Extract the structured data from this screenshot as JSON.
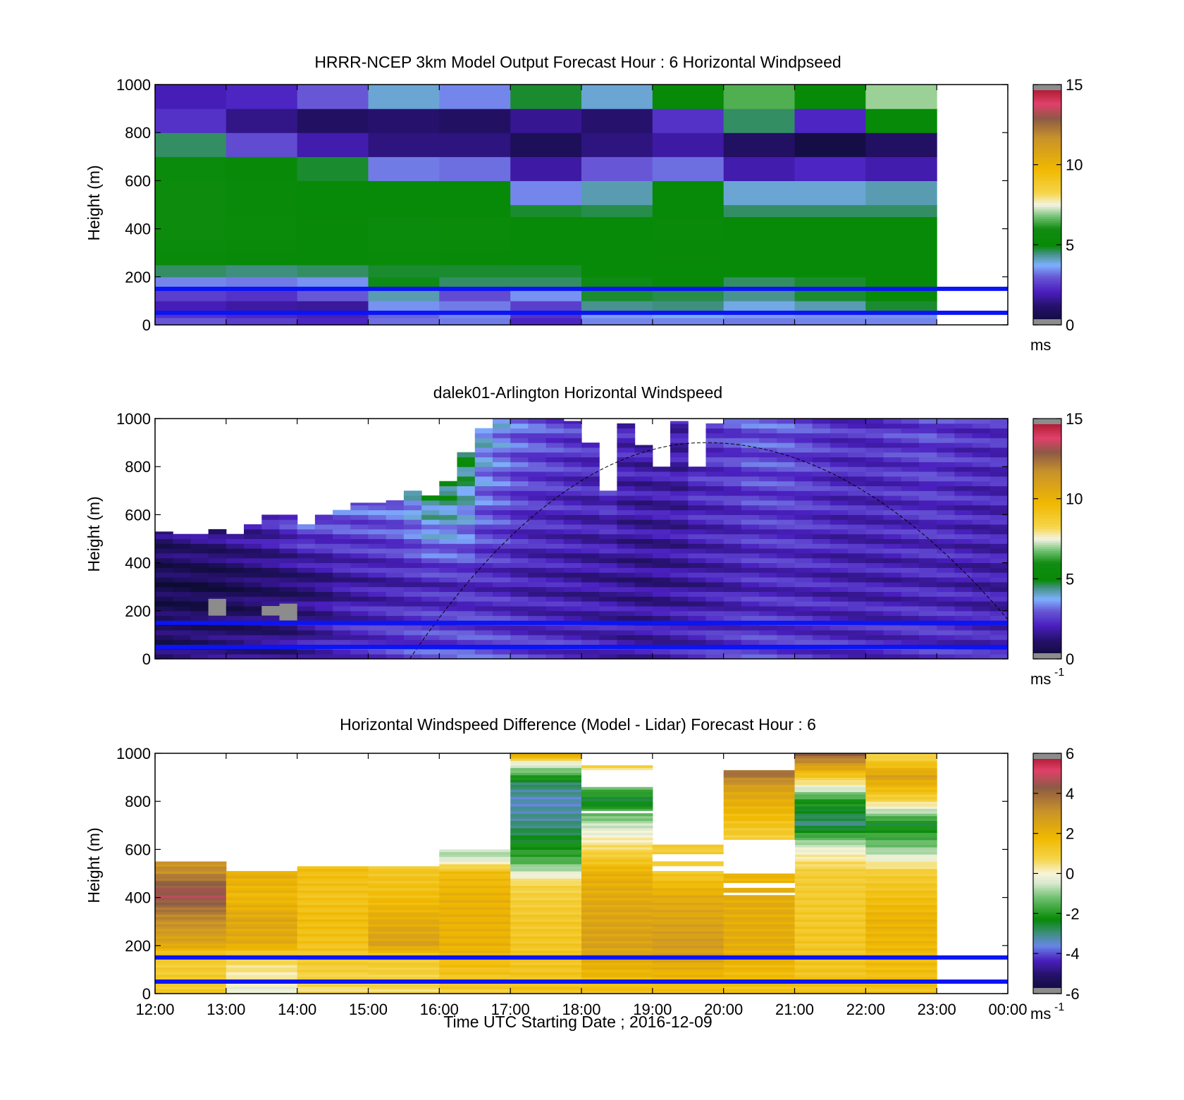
{
  "figure": {
    "xlabel": "Time UTC  Starting Date ; 2016-12-09",
    "x_ticks": [
      "12:00",
      "13:00",
      "14:00",
      "15:00",
      "16:00",
      "17:00",
      "18:00",
      "19:00",
      "20:00",
      "21:00",
      "22:00",
      "23:00",
      "00:00"
    ]
  },
  "chart_data": [
    {
      "type": "heatmap",
      "title": "HRRR-NCEP 3km Model Output   Forecast Hour : 6 Horizontal Windpseed",
      "ylabel": "Height (m)",
      "ylim": [
        0,
        1000
      ],
      "y_ticks": [
        "0",
        "200",
        "400",
        "600",
        "800",
        "1000"
      ],
      "colorbar": {
        "range": [
          0,
          15
        ],
        "ticks": [
          "0",
          "5",
          "10",
          "15"
        ],
        "unit": "ms"
      },
      "x": [
        "12:00",
        "13:00",
        "14:00",
        "15:00",
        "16:00",
        "17:00",
        "18:00",
        "19:00",
        "20:00",
        "21:00",
        "22:00"
      ],
      "y_edges": [
        0,
        30,
        50,
        100,
        150,
        200,
        250,
        300,
        350,
        400,
        450,
        500,
        600,
        700,
        800,
        900,
        1000
      ],
      "values": [
        [
          3.0,
          2.6,
          2.2,
          3.2,
          3.3,
          2.2,
          3.4,
          3.4,
          3.3,
          3.4,
          3.4
        ],
        [
          2.4,
          2.2,
          2.0,
          3.1,
          3.4,
          2.4,
          3.6,
          3.8,
          3.6,
          3.5,
          3.5
        ],
        [
          2.0,
          1.8,
          1.7,
          3.5,
          3.3,
          2.6,
          4.4,
          4.5,
          3.9,
          4.2,
          4.8
        ],
        [
          2.6,
          2.4,
          3.0,
          4.2,
          2.8,
          3.5,
          4.8,
          4.7,
          4.4,
          4.8,
          5.0
        ],
        [
          3.4,
          3.3,
          3.5,
          4.9,
          4.6,
          4.6,
          4.9,
          5.0,
          4.6,
          4.8,
          5.0
        ],
        [
          4.6,
          4.5,
          4.6,
          4.8,
          4.8,
          4.8,
          5.0,
          5.0,
          5.0,
          5.0,
          5.0
        ],
        [
          5.2,
          5.0,
          5.0,
          5.2,
          5.1,
          5.0,
          5.0,
          5.1,
          5.0,
          5.0,
          5.0
        ],
        [
          5.4,
          5.2,
          5.0,
          5.3,
          5.2,
          5.0,
          5.0,
          5.1,
          5.0,
          5.0,
          5.0
        ],
        [
          5.5,
          5.3,
          5.1,
          5.4,
          5.3,
          5.0,
          5.0,
          5.2,
          5.0,
          5.0,
          5.0
        ],
        [
          5.6,
          5.3,
          5.1,
          5.4,
          5.3,
          5.0,
          5.0,
          5.2,
          5.0,
          5.0,
          5.0
        ],
        [
          5.6,
          5.2,
          5.0,
          5.0,
          5.0,
          4.8,
          4.7,
          5.0,
          4.6,
          4.6,
          4.6
        ],
        [
          5.6,
          5.2,
          5.0,
          5.0,
          5.0,
          3.4,
          4.2,
          5.0,
          4.0,
          4.0,
          4.2
        ],
        [
          5.4,
          5.1,
          4.8,
          3.3,
          3.2,
          1.8,
          3.0,
          3.2,
          1.9,
          2.2,
          1.9
        ],
        [
          4.6,
          2.8,
          1.9,
          1.4,
          1.4,
          0.8,
          1.4,
          1.8,
          1.0,
          0.4,
          1.0
        ],
        [
          2.4,
          1.5,
          1.0,
          1.2,
          1.0,
          1.6,
          1.2,
          2.4,
          4.6,
          2.2,
          5.0
        ],
        [
          2.0,
          2.2,
          3.0,
          4.0,
          3.4,
          4.8,
          4.0,
          5.0,
          6.5,
          5.0,
          7.0
        ]
      ],
      "reference_heights": [
        50,
        150
      ]
    },
    {
      "type": "heatmap",
      "title": "dalek01-Arlington  Horizontal Windspeed",
      "ylabel": "Height (m)",
      "ylim": [
        0,
        1000
      ],
      "y_ticks": [
        "0",
        "200",
        "400",
        "600",
        "800",
        "1000"
      ],
      "colorbar": {
        "range": [
          0,
          15
        ],
        "ticks": [
          "0",
          "5",
          "10",
          "15"
        ],
        "unit": "ms",
        "unit_exp": "-1"
      },
      "columns_per_hour": 4,
      "top_height_per_column": [
        530,
        520,
        520,
        540,
        520,
        560,
        600,
        600,
        560,
        600,
        620,
        650,
        650,
        660,
        700,
        680,
        740,
        860,
        960,
        1000,
        1000,
        1000,
        1000,
        990,
        900,
        700,
        980,
        890,
        800,
        990,
        800,
        980,
        1000,
        1000,
        1000,
        1000,
        1000,
        1000,
        1000,
        1000,
        1000,
        1000,
        1000,
        1000,
        1000,
        1000,
        1000,
        1000
      ],
      "speed_profile_per_column": [
        [
          1.0,
          0.6,
          1.2
        ],
        [
          1.1,
          0.6,
          1.4
        ],
        [
          1.2,
          0.5,
          1.6
        ],
        [
          1.3,
          0.6,
          1.6
        ],
        [
          1.3,
          0.7,
          1.8
        ],
        [
          1.4,
          0.9,
          2.0
        ],
        [
          1.5,
          1.0,
          2.4
        ],
        [
          1.6,
          1.1,
          2.8
        ],
        [
          2.0,
          1.2,
          3.0
        ],
        [
          2.2,
          1.4,
          3.0
        ],
        [
          2.4,
          1.7,
          3.2
        ],
        [
          2.5,
          1.8,
          3.2
        ],
        [
          2.6,
          1.9,
          3.3
        ],
        [
          2.7,
          2.0,
          3.4
        ],
        [
          2.8,
          2.1,
          4.0
        ],
        [
          2.8,
          2.2,
          4.6
        ],
        [
          2.8,
          2.2,
          5.0
        ],
        [
          2.9,
          2.3,
          5.0
        ],
        [
          2.8,
          2.2,
          4.0
        ],
        [
          2.7,
          2.2,
          3.6
        ],
        [
          2.6,
          2.0,
          3.2
        ],
        [
          2.5,
          1.9,
          3.0
        ],
        [
          2.5,
          1.9,
          2.8
        ],
        [
          2.4,
          1.8,
          2.6
        ],
        [
          2.3,
          1.7,
          2.4
        ],
        [
          2.2,
          1.7,
          2.4
        ],
        [
          2.0,
          1.6,
          2.2
        ],
        [
          2.0,
          1.5,
          2.0
        ],
        [
          2.0,
          1.6,
          2.0
        ],
        [
          2.1,
          1.7,
          2.0
        ],
        [
          2.2,
          1.8,
          2.4
        ],
        [
          2.4,
          1.9,
          2.6
        ],
        [
          2.5,
          2.0,
          2.8
        ],
        [
          2.6,
          2.2,
          3.0
        ],
        [
          2.6,
          2.2,
          3.0
        ],
        [
          2.5,
          2.2,
          3.0
        ],
        [
          2.5,
          2.2,
          2.8
        ],
        [
          2.4,
          2.1,
          2.6
        ],
        [
          2.4,
          2.0,
          2.4
        ],
        [
          2.3,
          2.0,
          2.4
        ],
        [
          2.3,
          2.0,
          2.4
        ],
        [
          2.4,
          2.0,
          2.6
        ],
        [
          2.4,
          2.1,
          2.6
        ],
        [
          2.5,
          2.1,
          2.8
        ],
        [
          2.4,
          2.1,
          2.6
        ],
        [
          2.3,
          2.0,
          2.4
        ],
        [
          2.2,
          1.9,
          2.4
        ],
        [
          2.2,
          1.9,
          2.4
        ]
      ],
      "missing_cells": [
        {
          "x": "12:45",
          "y_range": [
            180,
            250
          ]
        },
        {
          "x": "13:30",
          "y_range": [
            180,
            220
          ]
        },
        {
          "x": "13:45",
          "y_range": [
            160,
            230
          ]
        }
      ],
      "reference_heights": [
        50,
        150
      ],
      "overlay_curve": {
        "style": "dashed",
        "x_range": [
          "15:35",
          "00:00"
        ],
        "peak_height": 900,
        "peak_x": "19:45"
      }
    },
    {
      "type": "heatmap",
      "title": "Horizontal Windspeed Difference (Model - Lidar) Forecast Hour : 6",
      "ylabel": "Height (m)",
      "ylim": [
        0,
        1000
      ],
      "y_ticks": [
        "0",
        "200",
        "400",
        "600",
        "800",
        "1000"
      ],
      "colorbar": {
        "range": [
          -6,
          6
        ],
        "ticks": [
          "-6",
          "-4",
          "-2",
          "0",
          "2",
          "4",
          "6"
        ],
        "unit": "ms",
        "unit_exp": "-1"
      },
      "x": [
        "12:00",
        "13:00",
        "14:00",
        "15:00",
        "16:00",
        "17:00",
        "18:00",
        "19:00",
        "20:00",
        "21:00",
        "22:00"
      ],
      "top_height_per_column": [
        550,
        510,
        530,
        530,
        600,
        1000,
        950,
        620,
        930,
        1000,
        1000
      ],
      "profile_per_column": [
        [
          [
            0,
            1.2
          ],
          [
            150,
            1.0
          ],
          [
            200,
            2.4
          ],
          [
            300,
            3.2
          ],
          [
            350,
            3.8
          ],
          [
            400,
            4.6
          ],
          [
            450,
            4.2
          ],
          [
            500,
            3.2
          ],
          [
            550,
            3.0
          ]
        ],
        [
          [
            0,
            -0.3
          ],
          [
            150,
            0.8
          ],
          [
            200,
            2.2
          ],
          [
            300,
            2.4
          ],
          [
            400,
            1.8
          ],
          [
            510,
            2.2
          ]
        ],
        [
          [
            0,
            0.5
          ],
          [
            150,
            1.2
          ],
          [
            200,
            1.4
          ],
          [
            300,
            1.6
          ],
          [
            400,
            1.4
          ],
          [
            530,
            1.6
          ]
        ],
        [
          [
            0,
            0.6
          ],
          [
            150,
            1.2
          ],
          [
            200,
            2.6
          ],
          [
            300,
            2.2
          ],
          [
            400,
            1.6
          ],
          [
            530,
            1.2
          ]
        ],
        [
          [
            0,
            1.0
          ],
          [
            200,
            2.0
          ],
          [
            400,
            2.0
          ],
          [
            500,
            1.6
          ],
          [
            560,
            -0.6
          ],
          [
            600,
            -0.8
          ]
        ],
        [
          [
            0,
            1.4
          ],
          [
            300,
            1.2
          ],
          [
            450,
            0.8
          ],
          [
            550,
            -1.6
          ],
          [
            700,
            -3.0
          ],
          [
            800,
            -3.4
          ],
          [
            870,
            -2.8
          ],
          [
            960,
            0.0
          ],
          [
            1000,
            3.2
          ]
        ],
        [
          [
            0,
            1.4
          ],
          [
            200,
            2.6
          ],
          [
            350,
            2.4
          ],
          [
            500,
            2.0
          ],
          [
            600,
            0.6
          ],
          [
            700,
            -0.6
          ],
          [
            800,
            -2.6
          ],
          [
            950,
            1.0
          ]
        ],
        [
          [
            0,
            1.4
          ],
          [
            200,
            2.8
          ],
          [
            400,
            2.2
          ],
          [
            500,
            1.2
          ],
          [
            620,
            1.0
          ]
        ],
        [
          [
            0,
            1.4
          ],
          [
            200,
            2.2
          ],
          [
            400,
            2.2
          ],
          [
            500,
            1.8
          ],
          [
            650,
            1.0
          ],
          [
            850,
            2.6
          ],
          [
            930,
            4.2
          ]
        ],
        [
          [
            0,
            1.4
          ],
          [
            300,
            1.2
          ],
          [
            500,
            1.0
          ],
          [
            600,
            -0.2
          ],
          [
            700,
            -3.0
          ],
          [
            800,
            -2.0
          ],
          [
            900,
            1.2
          ],
          [
            1000,
            4.4
          ]
        ],
        [
          [
            0,
            1.4
          ],
          [
            300,
            2.0
          ],
          [
            500,
            1.0
          ],
          [
            600,
            -1.0
          ],
          [
            700,
            -2.4
          ],
          [
            800,
            0.8
          ],
          [
            900,
            2.6
          ],
          [
            1000,
            0.4
          ]
        ]
      ],
      "gaps": [
        {
          "x": "20:00",
          "y_range": [
            410,
            420
          ]
        },
        {
          "x": "20:00",
          "y_range": [
            440,
            460
          ]
        },
        {
          "x": "20:00",
          "y_range": [
            500,
            640
          ]
        },
        {
          "x": "19:00",
          "y_range": [
            510,
            530
          ]
        },
        {
          "x": "19:00",
          "y_range": [
            550,
            580
          ]
        },
        {
          "x": "18:00",
          "y_range": [
            750,
            760
          ]
        },
        {
          "x": "18:00",
          "y_range": [
            860,
            930
          ]
        }
      ],
      "reference_heights": [
        50,
        150
      ]
    }
  ]
}
